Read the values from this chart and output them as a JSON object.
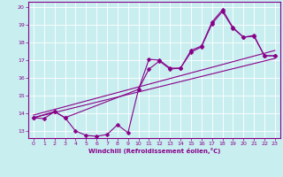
{
  "xlabel": "Windchill (Refroidissement éolien,°C)",
  "bg_color": "#c8eef0",
  "line_color": "#880088",
  "grid_color": "#ffffff",
  "xlim": [
    -0.5,
    23.5
  ],
  "ylim": [
    12.6,
    20.3
  ],
  "xticks": [
    0,
    1,
    2,
    3,
    4,
    5,
    6,
    7,
    8,
    9,
    10,
    11,
    12,
    13,
    14,
    15,
    16,
    17,
    18,
    19,
    20,
    21,
    22,
    23
  ],
  "yticks": [
    13,
    14,
    15,
    16,
    17,
    18,
    19,
    20
  ],
  "jagged_x": [
    0,
    1,
    2,
    3,
    4,
    5,
    6,
    7,
    8,
    9,
    10,
    11,
    12,
    13,
    14,
    15,
    16,
    17,
    18,
    19,
    20,
    21,
    22,
    23
  ],
  "jagged_y": [
    13.75,
    13.7,
    14.1,
    13.75,
    13.0,
    12.75,
    12.7,
    12.8,
    13.35,
    12.9,
    15.35,
    17.05,
    17.0,
    16.55,
    16.55,
    17.55,
    17.8,
    19.15,
    19.85,
    18.85,
    18.3,
    18.4,
    17.25,
    17.25
  ],
  "smooth_x": [
    0,
    2,
    3,
    10,
    11,
    12,
    13,
    14,
    15,
    16,
    17,
    18,
    19,
    20,
    21,
    22,
    23
  ],
  "smooth_y": [
    13.75,
    14.1,
    13.75,
    15.35,
    16.5,
    16.95,
    16.5,
    16.55,
    17.45,
    17.75,
    19.05,
    19.75,
    18.8,
    18.3,
    18.35,
    17.25,
    17.25
  ],
  "trend1_x": [
    0,
    23
  ],
  "trend1_y": [
    13.75,
    17.1
  ],
  "trend2_x": [
    0,
    23
  ],
  "trend2_y": [
    13.9,
    17.55
  ]
}
